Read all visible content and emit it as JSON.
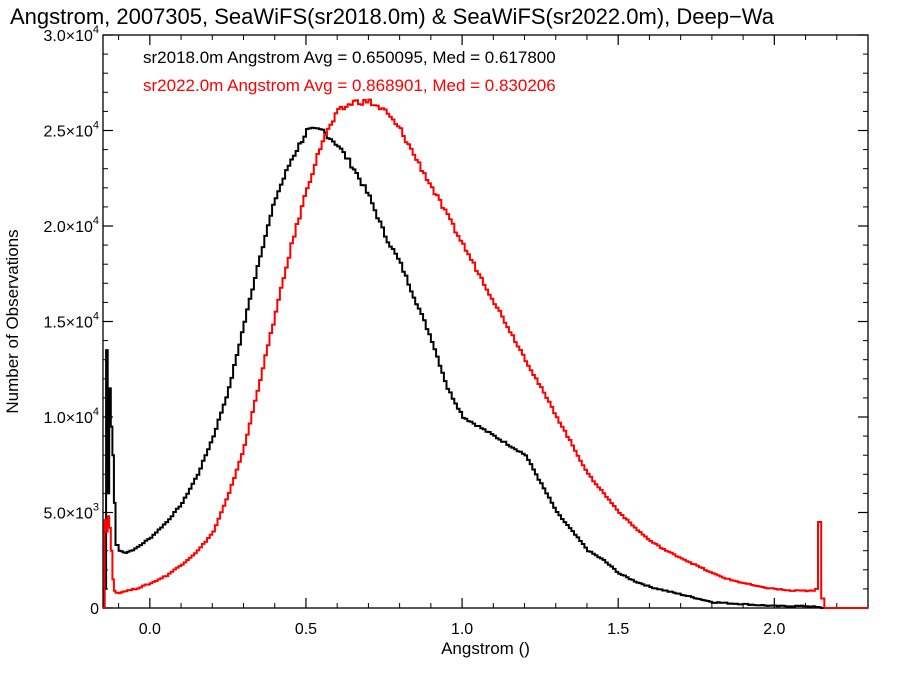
{
  "chart_data": {
    "type": "line",
    "title": "Angstrom, 2007305, SeaWiFS(sr2018.0m) & SeaWiFS(sr2022.0m), Deep−Wa",
    "xlabel": "Angstrom ()",
    "ylabel": "Number of Observations",
    "xlim": [
      -0.15,
      2.3
    ],
    "ylim": [
      0,
      30000
    ],
    "x_ticks": [
      {
        "value": 0.0,
        "label": "0.0"
      },
      {
        "value": 0.5,
        "label": "0.5"
      },
      {
        "value": 1.0,
        "label": "1.0"
      },
      {
        "value": 1.5,
        "label": "1.5"
      },
      {
        "value": 2.0,
        "label": "2.0"
      }
    ],
    "y_ticks": [
      {
        "value": 0,
        "mant": "0",
        "exp": ""
      },
      {
        "value": 5000,
        "mant": "5.0×10",
        "exp": "3"
      },
      {
        "value": 10000,
        "mant": "1.0×10",
        "exp": "4"
      },
      {
        "value": 15000,
        "mant": "1.5×10",
        "exp": "4"
      },
      {
        "value": 20000,
        "mant": "2.0×10",
        "exp": "4"
      },
      {
        "value": 25000,
        "mant": "2.5×10",
        "exp": "4"
      },
      {
        "value": 30000,
        "mant": "3.0×10",
        "exp": "4"
      }
    ],
    "grid": false,
    "legend_position": "top-left",
    "series": [
      {
        "name": "sr2018.0m",
        "legend": "sr2018.0m Angstrom Avg = 0.650095, Med = 0.617800",
        "color": "#000000",
        "x": [
          -0.15,
          -0.145,
          -0.14,
          -0.135,
          -0.13,
          -0.125,
          -0.12,
          -0.115,
          -0.11,
          -0.1,
          -0.08,
          -0.05,
          0.0,
          0.05,
          0.1,
          0.15,
          0.2,
          0.25,
          0.3,
          0.35,
          0.4,
          0.45,
          0.5,
          0.55,
          0.6,
          0.65,
          0.7,
          0.75,
          0.8,
          0.85,
          0.9,
          0.95,
          1.0,
          1.05,
          1.1,
          1.15,
          1.2,
          1.25,
          1.3,
          1.35,
          1.4,
          1.45,
          1.5,
          1.55,
          1.6,
          1.65,
          1.7,
          1.75,
          1.8,
          1.85,
          1.9,
          1.95,
          2.0,
          2.05,
          2.1,
          2.13,
          2.15
        ],
        "y": [
          0,
          1000,
          13500,
          6000,
          11500,
          9500,
          8000,
          5500,
          3300,
          3000,
          2900,
          3100,
          3700,
          4500,
          5500,
          7000,
          9000,
          11500,
          15000,
          18500,
          21500,
          23500,
          25000,
          25000,
          24200,
          23000,
          21500,
          19500,
          18000,
          16000,
          14000,
          11500,
          10000,
          9500,
          9000,
          8500,
          8000,
          6500,
          5000,
          4000,
          3000,
          2500,
          1800,
          1400,
          1100,
          900,
          700,
          500,
          300,
          250,
          200,
          150,
          100,
          100,
          100,
          50,
          0
        ]
      },
      {
        "name": "sr2022.0m",
        "legend": "sr2022.0m Angstrom Avg = 0.868901, Med = 0.830206",
        "color": "#ff0000",
        "x": [
          -0.15,
          -0.145,
          -0.14,
          -0.135,
          -0.13,
          -0.125,
          -0.12,
          -0.115,
          -0.11,
          -0.1,
          -0.08,
          -0.05,
          0.0,
          0.05,
          0.1,
          0.15,
          0.2,
          0.25,
          0.3,
          0.35,
          0.4,
          0.45,
          0.5,
          0.55,
          0.6,
          0.65,
          0.7,
          0.75,
          0.8,
          0.85,
          0.9,
          0.95,
          1.0,
          1.05,
          1.1,
          1.15,
          1.2,
          1.25,
          1.3,
          1.35,
          1.4,
          1.45,
          1.5,
          1.55,
          1.6,
          1.65,
          1.7,
          1.75,
          1.8,
          1.85,
          1.9,
          1.95,
          2.0,
          2.05,
          2.1,
          2.12,
          2.13,
          2.14,
          2.15,
          2.16
        ],
        "y": [
          0,
          4600,
          4000,
          4800,
          4200,
          3000,
          1500,
          900,
          800,
          800,
          900,
          1000,
          1300,
          1700,
          2300,
          3000,
          4000,
          6000,
          8500,
          12000,
          15500,
          19000,
          22000,
          24500,
          26000,
          26500,
          26500,
          26000,
          25000,
          23500,
          22000,
          20500,
          19000,
          17500,
          16000,
          14500,
          13000,
          11500,
          10000,
          8500,
          7000,
          6000,
          5000,
          4200,
          3500,
          3000,
          2600,
          2200,
          1800,
          1500,
          1300,
          1100,
          1000,
          900,
          900,
          900,
          1000,
          4500,
          500,
          0
        ]
      }
    ]
  }
}
